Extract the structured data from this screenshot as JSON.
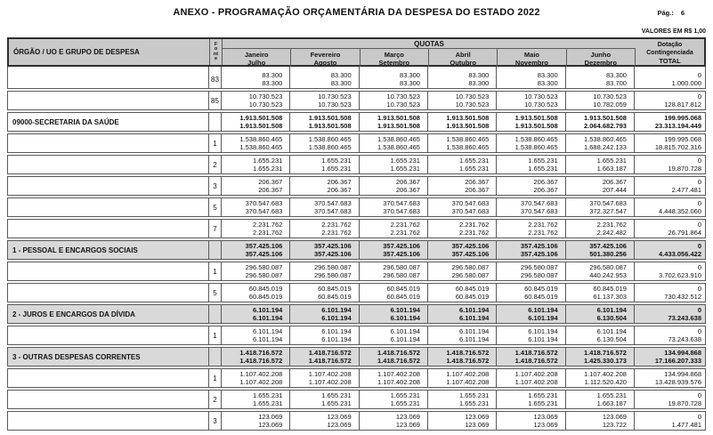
{
  "colors": {
    "header_bg": "#c9c9c9",
    "group_bg": "#d9d9d9",
    "line": "#5a5a5a",
    "outline": "#2f2f2f"
  },
  "header": {
    "title": "ANEXO - PROGRAMAÇÃO ORÇAMENTÁRIA DA DESPESA DO ESTADO 2022",
    "page_label": "Pág.:",
    "page_number": "6",
    "currency_note": "VALORES EM R$ 1,00"
  },
  "table": {
    "columns": {
      "orgao": "ÓRGÃO / UO E GRUPO DE DESPESA",
      "fonte": "Fonte",
      "quotas": "QUOTAS",
      "months": [
        {
          "top": "Janeiro",
          "bottom": "Julho"
        },
        {
          "top": "Fevereiro",
          "bottom": "Agosto"
        },
        {
          "top": "Março",
          "bottom": "Setembro"
        },
        {
          "top": "Abril",
          "bottom": "Outubro"
        },
        {
          "top": "Maio",
          "bottom": "Novembro"
        },
        {
          "top": "Junho",
          "bottom": "Dezembro"
        }
      ],
      "dotacao": {
        "line1": "Dotação",
        "line2": "Contingenciada",
        "line3": "TOTAL"
      }
    },
    "rows": [
      {
        "label": "",
        "fonte": "83",
        "type": "fonte",
        "line1": [
          "83.300",
          "83.300",
          "83.300",
          "83.300",
          "83.300",
          "83.300",
          "0"
        ],
        "line2": [
          "83.300",
          "83.300",
          "83.300",
          "83.300",
          "83.300",
          "83.700",
          "1.000.000"
        ]
      },
      {
        "label": "",
        "fonte": "85",
        "type": "fonte",
        "line1": [
          "10.730.523",
          "10.730.523",
          "10.730.523",
          "10.730.523",
          "10.730.523",
          "10.730.523",
          "0"
        ],
        "line2": [
          "10.730.523",
          "10.730.523",
          "10.730.523",
          "10.730.523",
          "10.730.523",
          "10.782.059",
          "128.817.812"
        ]
      },
      {
        "label": "09000-SECRETARIA DA SAÚDE",
        "fonte": "",
        "type": "organ",
        "line1": [
          "1.913.501.508",
          "1.913.501.508",
          "1.913.501.508",
          "1.913.501.508",
          "1.913.501.508",
          "1.913.501.508",
          "199.995.068"
        ],
        "line2": [
          "1.913.501.508",
          "1.913.501.508",
          "1.913.501.508",
          "1.913.501.508",
          "1.913.501.508",
          "2.064.682.793",
          "23.313.194.449"
        ]
      },
      {
        "label": "",
        "fonte": "1",
        "type": "fonte",
        "line1": [
          "1.538.860.465",
          "1.538.860.465",
          "1.538.860.465",
          "1.538.860.465",
          "1.538.860.465",
          "1.538.860.465",
          "199.995.068"
        ],
        "line2": [
          "1.538.860.465",
          "1.538.860.465",
          "1.538.860.465",
          "1.538.860.465",
          "1.538.860.465",
          "1.688.242.133",
          "18.815.702.316"
        ]
      },
      {
        "label": "",
        "fonte": "2",
        "type": "fonte",
        "line1": [
          "1.655.231",
          "1.655.231",
          "1.655.231",
          "1.655.231",
          "1.655.231",
          "1.655.231",
          "0"
        ],
        "line2": [
          "1.655.231",
          "1.655.231",
          "1.655.231",
          "1.655.231",
          "1.655.231",
          "1.663.187",
          "19.870.728"
        ]
      },
      {
        "label": "",
        "fonte": "3",
        "type": "fonte",
        "line1": [
          "206.367",
          "206.367",
          "206.367",
          "206.367",
          "206.367",
          "206.367",
          "0"
        ],
        "line2": [
          "206.367",
          "206.367",
          "206.367",
          "206.367",
          "206.367",
          "207.444",
          "2.477.481"
        ]
      },
      {
        "label": "",
        "fonte": "5",
        "type": "fonte",
        "line1": [
          "370.547.683",
          "370.547.683",
          "370.547.683",
          "370.547.683",
          "370.547.683",
          "370.547.683",
          "0"
        ],
        "line2": [
          "370.547.683",
          "370.547.683",
          "370.547.683",
          "370.547.683",
          "370.547.683",
          "372.327.547",
          "4.448.352.060"
        ]
      },
      {
        "label": "",
        "fonte": "7",
        "type": "fonte",
        "line1": [
          "2.231.762",
          "2.231.762",
          "2.231.762",
          "2.231.762",
          "2.231.762",
          "2.231.762",
          "0"
        ],
        "line2": [
          "2.231.762",
          "2.231.762",
          "2.231.762",
          "2.231.762",
          "2.231.762",
          "2.242.482",
          "26.791.864"
        ]
      },
      {
        "label": "1 - PESSOAL E ENCARGOS SOCIAIS",
        "fonte": "",
        "type": "group",
        "line1": [
          "357.425.106",
          "357.425.106",
          "357.425.106",
          "357.425.106",
          "357.425.106",
          "357.425.106",
          "0"
        ],
        "line2": [
          "357.425.106",
          "357.425.106",
          "357.425.106",
          "357.425.106",
          "357.425.106",
          "501.380.256",
          "4.433.056.422"
        ]
      },
      {
        "label": "",
        "fonte": "1",
        "type": "fonte",
        "line1": [
          "296.580.087",
          "296.580.087",
          "296.580.087",
          "296.580.087",
          "296.580.087",
          "296.580.087",
          "0"
        ],
        "line2": [
          "296.580.087",
          "296.580.087",
          "296.580.087",
          "296.580.087",
          "296.580.087",
          "440.242.953",
          "3.702.623.910"
        ]
      },
      {
        "label": "",
        "fonte": "5",
        "type": "fonte",
        "line1": [
          "60.845.019",
          "60.845.019",
          "60.845.019",
          "60.845.019",
          "60.845.019",
          "60.845.019",
          "0"
        ],
        "line2": [
          "60.845.019",
          "60.845.019",
          "60.845.019",
          "60.845.019",
          "60.845.019",
          "61.137.303",
          "730.432.512"
        ]
      },
      {
        "label": "2 - JUROS E ENCARGOS DA DÍVIDA",
        "fonte": "",
        "type": "group",
        "line1": [
          "6.101.194",
          "6.101.194",
          "6.101.194",
          "6.101.194",
          "6.101.194",
          "6.101.194",
          "0"
        ],
        "line2": [
          "6.101.194",
          "6.101.194",
          "6.101.194",
          "6.101.194",
          "6.101.194",
          "6.130.504",
          "73.243.638"
        ]
      },
      {
        "label": "",
        "fonte": "1",
        "type": "fonte",
        "line1": [
          "6.101.194",
          "6.101.194",
          "6.101.194",
          "6.101.194",
          "6.101.194",
          "6.101.194",
          "0"
        ],
        "line2": [
          "6.101.194",
          "6.101.194",
          "6.101.194",
          "6.101.194",
          "6.101.194",
          "6.130.504",
          "73.243.638"
        ]
      },
      {
        "label": "3 - OUTRAS DESPESAS CORRENTES",
        "fonte": "",
        "type": "group",
        "line1": [
          "1.418.716.572",
          "1.418.716.572",
          "1.418.716.572",
          "1.418.716.572",
          "1.418.716.572",
          "1.418.716.572",
          "134.994.868"
        ],
        "line2": [
          "1.418.716.572",
          "1.418.716.572",
          "1.418.716.572",
          "1.418.716.572",
          "1.418.716.572",
          "1.425.330.173",
          "17.166.207.333"
        ]
      },
      {
        "label": "",
        "fonte": "1",
        "type": "fonte",
        "line1": [
          "1.107.402.208",
          "1.107.402.208",
          "1.107.402.208",
          "1.107.402.208",
          "1.107.402.208",
          "1.107.402.208",
          "134.994.868"
        ],
        "line2": [
          "1.107.402.208",
          "1.107.402.208",
          "1.107.402.208",
          "1.107.402.208",
          "1.107.402.208",
          "1.112.520.420",
          "13.428.939.576"
        ]
      },
      {
        "label": "",
        "fonte": "2",
        "type": "fonte",
        "line1": [
          "1.655.231",
          "1.655.231",
          "1.655.231",
          "1.655.231",
          "1.655.231",
          "1.655.231",
          "0"
        ],
        "line2": [
          "1.655.231",
          "1.655.231",
          "1.655.231",
          "1.655.231",
          "1.655.231",
          "1.663.187",
          "19.870.728"
        ]
      },
      {
        "label": "",
        "fonte": "3",
        "type": "fonte",
        "line1": [
          "123.069",
          "123.069",
          "123.069",
          "123.069",
          "123.069",
          "123.069",
          "0"
        ],
        "line2": [
          "123.069",
          "123.069",
          "123.069",
          "123.069",
          "123.069",
          "123.722",
          "1.477.481"
        ]
      }
    ]
  }
}
